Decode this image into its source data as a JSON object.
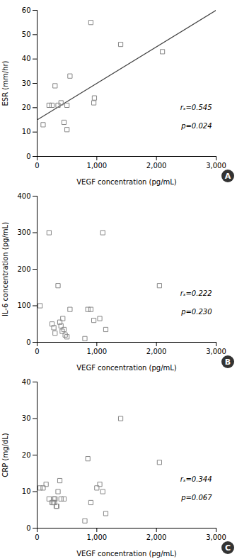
{
  "chart_data": [
    {
      "type": "scatter",
      "panel_label": "A",
      "xlabel": "VEGF concentration (pg/mL)",
      "ylabel": "ESR (mm/hr)",
      "x": [
        100,
        200,
        250,
        300,
        350,
        400,
        450,
        500,
        500,
        550,
        900,
        950,
        960,
        1400,
        2100
      ],
      "y": [
        13,
        21,
        21,
        29,
        21,
        22,
        14,
        11,
        21,
        33,
        55,
        22,
        24,
        46,
        43
      ],
      "marker": "square",
      "color": "#888888",
      "trendline": {
        "x": [
          0,
          3000
        ],
        "y": [
          15,
          60
        ],
        "color": "#444444"
      },
      "xlim": [
        0,
        3000
      ],
      "ylim": [
        0,
        60
      ],
      "xticks": [
        0,
        {
          "value": 1000,
          "label": "1,000"
        },
        {
          "value": 2000,
          "label": "2,000"
        },
        {
          "value": 3000,
          "label": "3,000"
        }
      ],
      "yticks": [
        0,
        10,
        20,
        30,
        40,
        50,
        60
      ],
      "annotations": [
        "rₛ=0.545",
        "p=0.024"
      ],
      "grid": false
    },
    {
      "type": "scatter",
      "panel_label": "B",
      "xlabel": "VEGF concentration (pg/mL)",
      "ylabel": "IL-6 concentration (pg/mL)",
      "x": [
        50,
        200,
        250,
        280,
        300,
        350,
        380,
        400,
        420,
        430,
        450,
        470,
        500,
        550,
        800,
        850,
        900,
        950,
        1050,
        1100,
        1150,
        2050
      ],
      "y": [
        100,
        300,
        50,
        40,
        25,
        155,
        55,
        45,
        30,
        65,
        35,
        20,
        15,
        90,
        10,
        90,
        90,
        60,
        65,
        300,
        35,
        155
      ],
      "marker": "square",
      "color": "#888888",
      "xlim": [
        0,
        3000
      ],
      "ylim": [
        0,
        400
      ],
      "xticks": [
        0,
        {
          "value": 1000,
          "label": "1,000"
        },
        {
          "value": 2000,
          "label": "2,000"
        },
        {
          "value": 3000,
          "label": "3,000"
        }
      ],
      "yticks": [
        0,
        100,
        200,
        300,
        400
      ],
      "annotations": [
        "rₛ=0.222",
        "p=0.230"
      ],
      "grid": false
    },
    {
      "type": "scatter",
      "panel_label": "C",
      "xlabel": "VEGF concentration (pg/mL)",
      "ylabel": "CRP (mg/dL)",
      "x": [
        50,
        100,
        150,
        200,
        250,
        270,
        280,
        290,
        300,
        320,
        330,
        350,
        380,
        400,
        450,
        800,
        850,
        900,
        1000,
        1050,
        1100,
        1150,
        1400,
        2050
      ],
      "y": [
        11,
        11,
        12,
        8,
        7,
        7,
        8,
        7,
        8,
        6,
        6,
        10,
        13,
        8,
        8,
        2,
        19,
        7,
        11,
        12,
        10,
        4,
        30,
        18
      ],
      "marker": "square",
      "color": "#888888",
      "xlim": [
        0,
        3000
      ],
      "ylim": [
        0,
        40
      ],
      "xticks": [
        0,
        {
          "value": 1000,
          "label": "1,000"
        },
        {
          "value": 2000,
          "label": "2,000"
        },
        {
          "value": 3000,
          "label": "3,000"
        }
      ],
      "yticks": [
        0,
        10,
        20,
        30,
        40
      ],
      "annotations": [
        "rₛ=0.344",
        "p=0.067"
      ],
      "grid": false
    }
  ]
}
